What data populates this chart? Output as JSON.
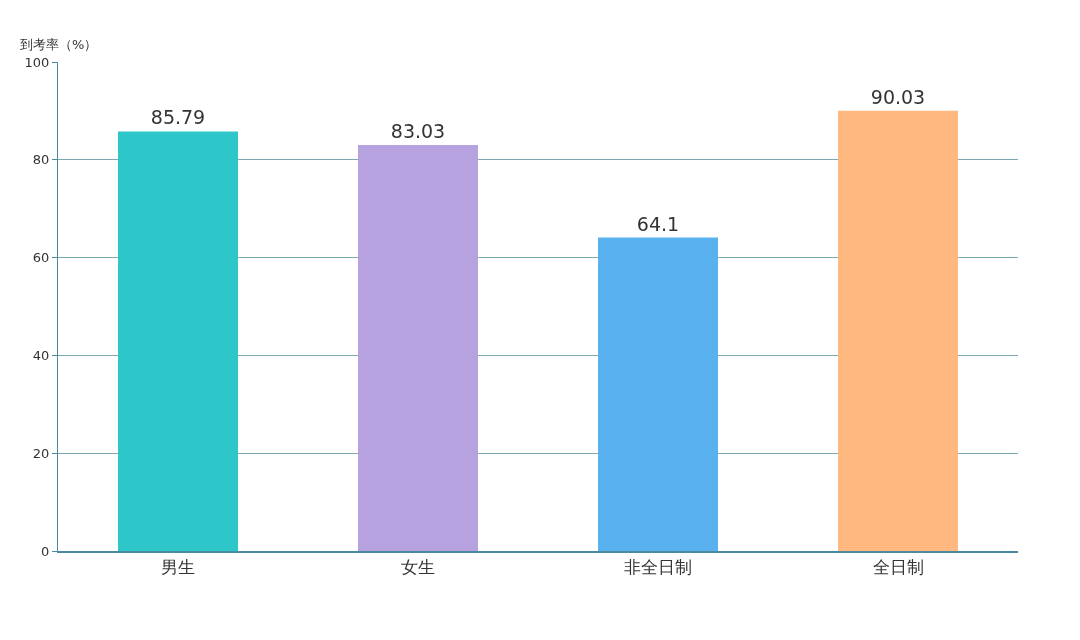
{
  "chart_data": {
    "type": "bar",
    "ylabel": "到考率（%）",
    "categories": [
      "男生",
      "女生",
      "非全日制",
      "全日制"
    ],
    "values": [
      85.79,
      83.03,
      64.1,
      90.03
    ],
    "colors": [
      "#2ec7c9",
      "#b6a2de",
      "#5ab1ef",
      "#ffb980"
    ],
    "ylim": [
      0,
      100
    ],
    "yticks": [
      0,
      20,
      40,
      60,
      80,
      100
    ],
    "grid": "y",
    "data_labels": true,
    "legend": false
  }
}
